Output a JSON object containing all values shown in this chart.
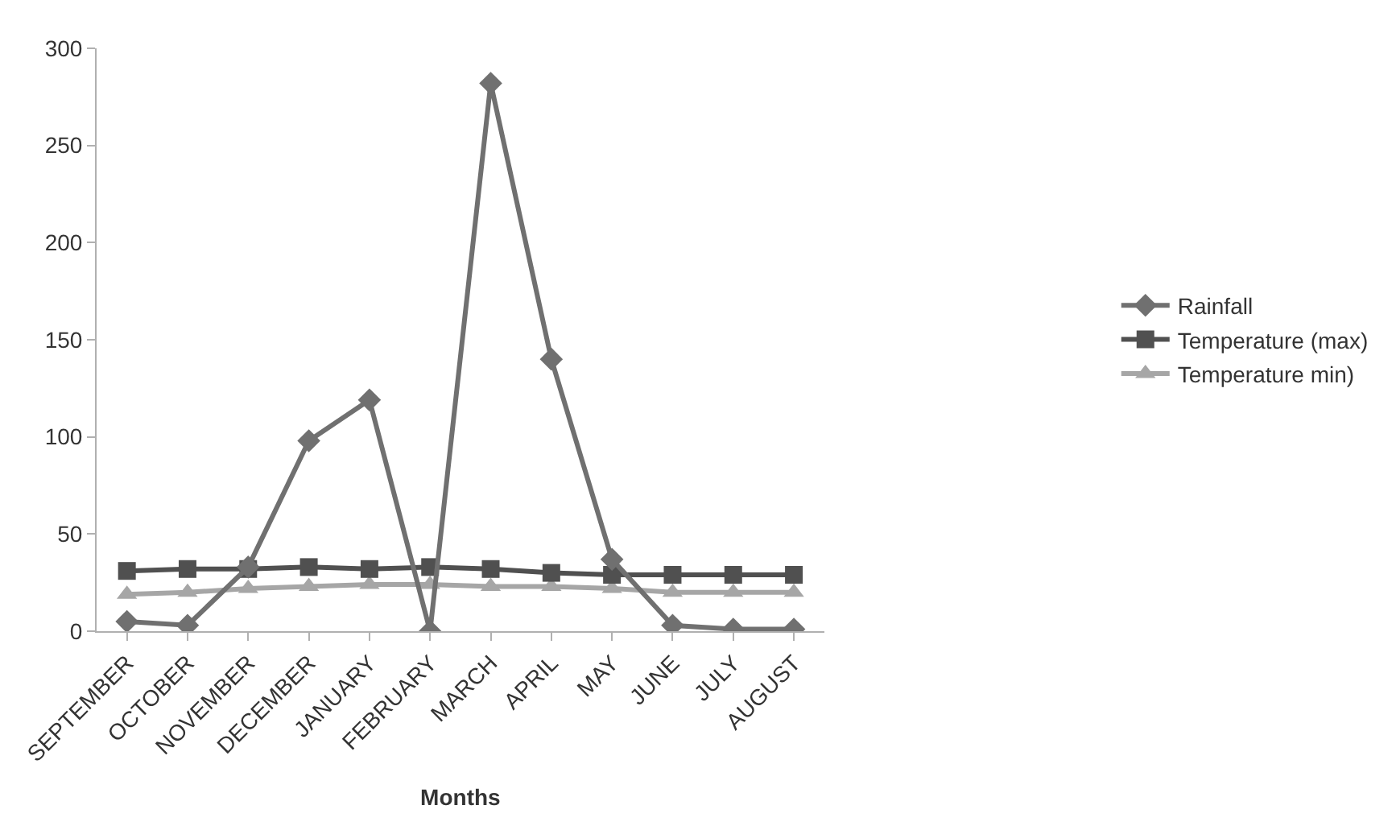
{
  "chart_data": {
    "type": "line",
    "xlabel": "Months",
    "categories": [
      "SEPTEMBER",
      "OCTOBER",
      "NOVEMBER",
      "DECEMBER",
      "JANUARY",
      "FEBRUARY",
      "MARCH",
      "APRIL",
      "MAY",
      "JUNE",
      "JULY",
      "AUGUST"
    ],
    "series": [
      {
        "name": "Rainfall",
        "color": "#707070",
        "marker": "diamond",
        "values": [
          5,
          3,
          33,
          98,
          119,
          0,
          282,
          140,
          37,
          3,
          1,
          1
        ]
      },
      {
        "name": "Temperature (max)",
        "color": "#505050",
        "marker": "square",
        "values": [
          31,
          32,
          32,
          33,
          32,
          33,
          32,
          30,
          29,
          29,
          29,
          29
        ]
      },
      {
        "name": "Temperature min)",
        "color": "#a6a6a6",
        "marker": "triangle",
        "values": [
          19,
          20,
          22,
          23,
          24,
          24,
          23,
          23,
          22,
          20,
          20,
          20
        ]
      }
    ],
    "ylim": [
      0,
      300
    ],
    "yticks": [
      0,
      50,
      100,
      150,
      200,
      250,
      300
    ],
    "legend": "right"
  }
}
